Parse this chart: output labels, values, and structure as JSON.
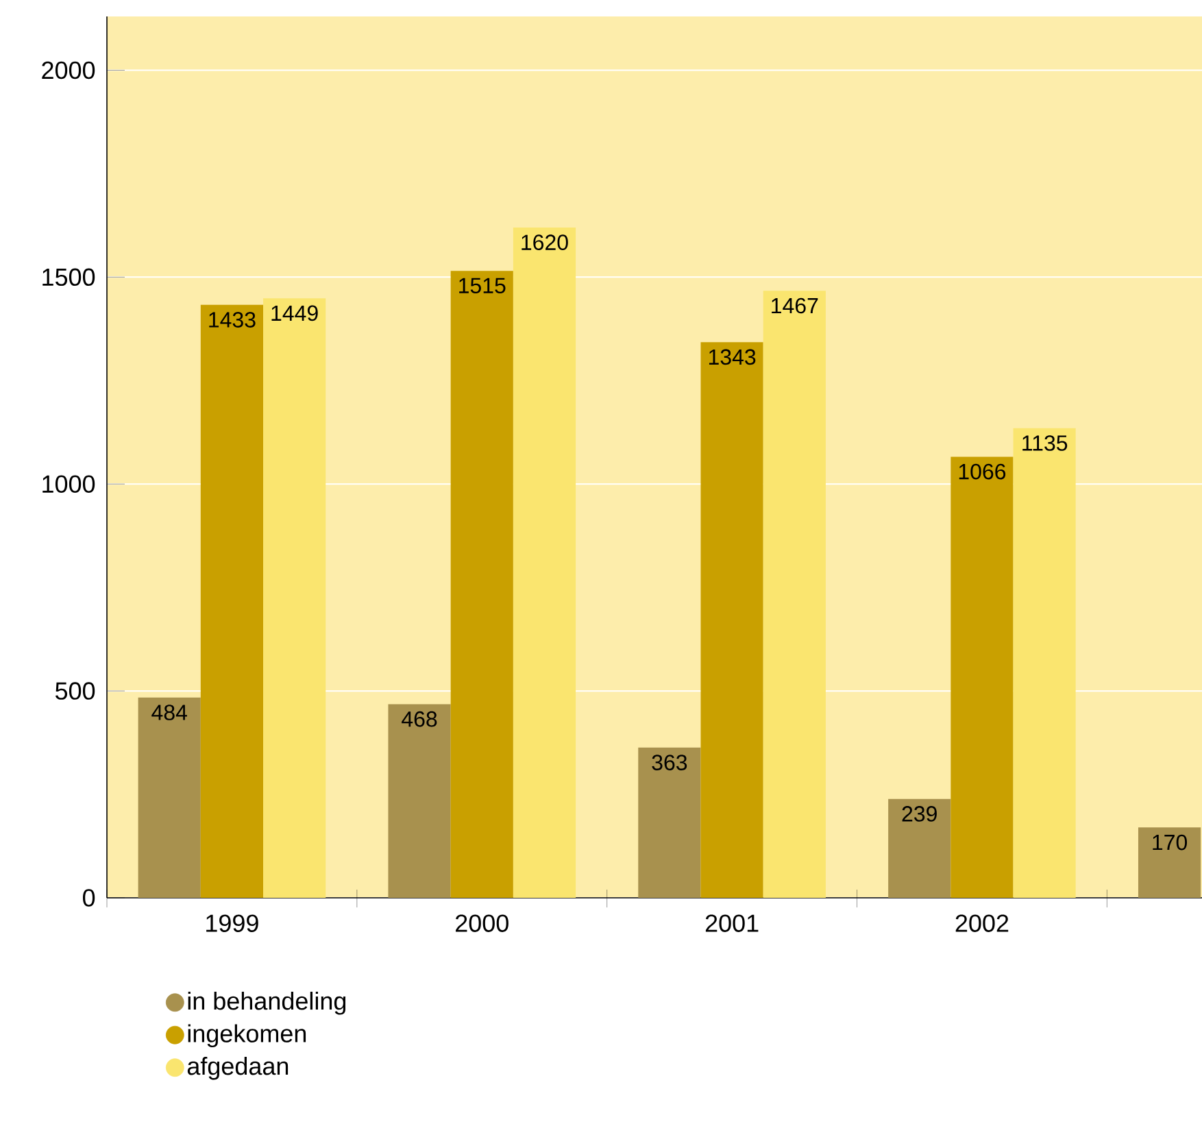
{
  "chart_data": {
    "type": "bar",
    "categories": [
      "1999",
      "2000",
      "2001",
      "2002",
      null
    ],
    "series": [
      {
        "name": "in behandeling",
        "color": "#a8914e",
        "values": [
          484,
          468,
          363,
          239,
          170
        ]
      },
      {
        "name": "ingekomen",
        "color": "#c9a000",
        "values": [
          1433,
          1515,
          1343,
          1066,
          null
        ]
      },
      {
        "name": "afgedaan",
        "color": "#fae56f",
        "values": [
          1449,
          1620,
          1467,
          1135,
          null
        ]
      }
    ],
    "ylim": [
      0,
      2130
    ],
    "yticks": [
      0,
      500,
      1000,
      1500,
      2000
    ],
    "grid": "y",
    "legend": "bottom left",
    "data_labels": true
  }
}
